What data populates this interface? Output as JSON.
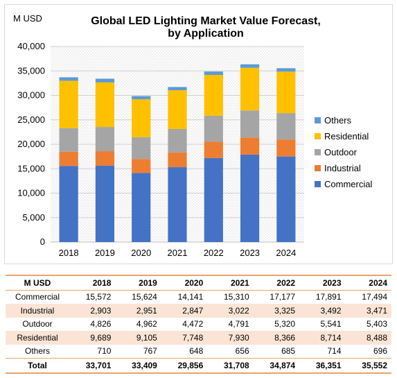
{
  "chart_data": {
    "type": "bar",
    "stacked": true,
    "title_lines": [
      "Global LED Lighting Market Value Forecast,",
      "by Application"
    ],
    "unit_label": "M USD",
    "categories": [
      "2018",
      "2019",
      "2020",
      "2021",
      "2022",
      "2023",
      "2024"
    ],
    "series": [
      {
        "name": "Commercial",
        "color": "#4472c4",
        "values": [
          15572,
          15624,
          14141,
          15310,
          17177,
          17891,
          17494
        ]
      },
      {
        "name": "Industrial",
        "color": "#ed7d31",
        "values": [
          2903,
          2951,
          2847,
          3022,
          3325,
          3492,
          3471
        ]
      },
      {
        "name": "Outdoor",
        "color": "#a5a5a5",
        "values": [
          4826,
          4962,
          4472,
          4791,
          5320,
          5541,
          5403
        ]
      },
      {
        "name": "Residential",
        "color": "#ffc000",
        "values": [
          9689,
          9105,
          7748,
          7930,
          8366,
          8714,
          8488
        ]
      },
      {
        "name": "Others",
        "color": "#5b9bd5",
        "values": [
          710,
          767,
          648,
          656,
          685,
          714,
          696
        ]
      }
    ],
    "ylim": [
      0,
      40000
    ],
    "yticks": [
      "0",
      "5,000",
      "10,000",
      "15,000",
      "20,000",
      "25,000",
      "30,000",
      "35,000",
      "40,000"
    ],
    "grid": true,
    "legend_position": "right"
  },
  "table": {
    "header": [
      "M USD",
      "2018",
      "2019",
      "2020",
      "2021",
      "2022",
      "2023",
      "2024"
    ],
    "rows": [
      [
        "Commercial",
        "15,572",
        "15,624",
        "14,141",
        "15,310",
        "17,177",
        "17,891",
        "17,494"
      ],
      [
        "Industrial",
        "2,903",
        "2,951",
        "2,847",
        "3,022",
        "3,325",
        "3,492",
        "3,471"
      ],
      [
        "Outdoor",
        "4,826",
        "4,962",
        "4,472",
        "4,791",
        "5,320",
        "5,541",
        "5,403"
      ],
      [
        "Residential",
        "9,689",
        "9,105",
        "7,748",
        "7,930",
        "8,366",
        "8,714",
        "8,488"
      ],
      [
        "Others",
        "710",
        "767",
        "648",
        "656",
        "685",
        "714",
        "696"
      ]
    ],
    "total": [
      "Total",
      "33,701",
      "33,409",
      "29,856",
      "31,708",
      "34,874",
      "36,351",
      "35,552"
    ]
  }
}
